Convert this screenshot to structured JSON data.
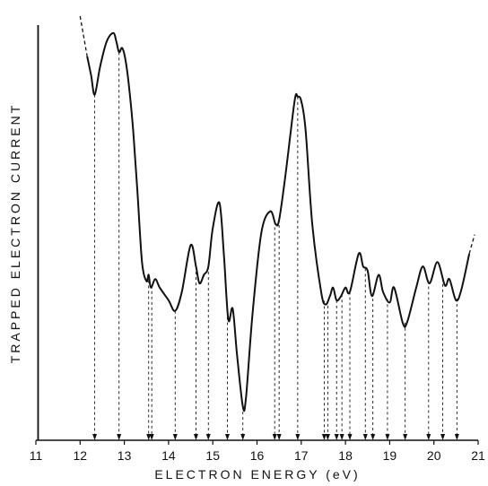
{
  "chart_data": {
    "type": "line",
    "title": "",
    "xlabel": "ELECTRON ENERGY (eV)",
    "ylabel": "TRAPPED ELECTRON CURRENT",
    "xlim": [
      11,
      21
    ],
    "ylim": [
      0,
      100
    ],
    "x_ticks": [
      "11",
      "12",
      "13",
      "14",
      "15",
      "16",
      "17",
      "18",
      "19",
      "20",
      "21"
    ],
    "grid": false,
    "legend": "none",
    "series": [
      {
        "x": [
          12.16,
          12.25,
          12.33,
          12.45,
          12.6,
          12.75,
          12.82,
          12.88,
          12.95,
          13.02,
          13.1,
          13.2,
          13.3,
          13.4,
          13.5,
          13.55,
          13.6,
          13.7,
          13.8,
          14.0,
          14.15,
          14.3,
          14.5,
          14.62,
          14.7,
          14.8,
          14.9,
          15.0,
          15.15,
          15.25,
          15.35,
          15.45,
          15.55,
          15.68,
          15.75,
          15.9,
          16.1,
          16.3,
          16.42,
          16.5,
          16.65,
          16.85,
          16.92,
          17.0,
          17.1,
          17.25,
          17.45,
          17.55,
          17.65,
          17.72,
          17.8,
          17.9,
          18.0,
          18.1,
          18.3,
          18.4,
          18.5,
          18.6,
          18.75,
          18.85,
          19.0,
          19.1,
          19.3,
          19.4,
          19.6,
          19.75,
          19.9,
          20.08,
          20.25,
          20.35,
          20.5,
          20.62,
          20.8
        ],
        "y": [
          90.5,
          86,
          81.5,
          88,
          94,
          96,
          94,
          91.5,
          92.5,
          90,
          84,
          73,
          58,
          42,
          37.5,
          39,
          36,
          38,
          36,
          33,
          30.5,
          35,
          46,
          41,
          37,
          39,
          41,
          50,
          56,
          44,
          28.5,
          31,
          20,
          8,
          10,
          30,
          49,
          54,
          51,
          52,
          63,
          80,
          81,
          80,
          73,
          51,
          35,
          32,
          34,
          36,
          33,
          34,
          36,
          35,
          44,
          41,
          40,
          34,
          39,
          35,
          32.5,
          36,
          27.5,
          28,
          36,
          41,
          37,
          42,
          36.5,
          38,
          33,
          35.5,
          44
        ]
      }
    ],
    "dashed_extensions": [
      {
        "from": [
          12.0,
          100
        ],
        "to": [
          12.16,
          90.5
        ]
      },
      {
        "from": [
          20.8,
          44
        ],
        "to": [
          20.92,
          48.5
        ]
      }
    ],
    "drop_lines_x": [
      12.33,
      12.88,
      13.55,
      13.62,
      14.15,
      14.62,
      14.9,
      15.33,
      15.68,
      16.4,
      16.5,
      16.92,
      17.52,
      17.6,
      17.8,
      17.92,
      18.1,
      18.45,
      18.62,
      18.95,
      19.35,
      19.88,
      20.2,
      20.52
    ],
    "baseline_marker_x": 11.05
  }
}
